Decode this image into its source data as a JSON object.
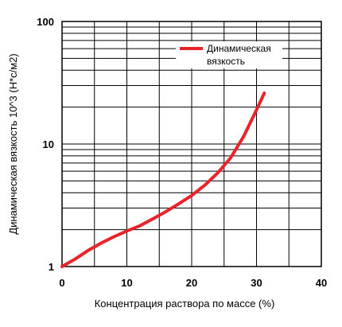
{
  "chart_data": {
    "type": "line",
    "title": "",
    "xlabel": "Концентрация раствора по массе (%)",
    "ylabel": "Динамическая вязкость 10^3 (Н*с/м2)",
    "xlim": [
      0,
      40
    ],
    "ylim": [
      1,
      100
    ],
    "y_scale": "log",
    "grid": true,
    "x_ticks": [
      "0",
      "10",
      "20",
      "30",
      "40"
    ],
    "y_ticks": [
      "1",
      "10",
      "100"
    ],
    "legend": {
      "placement": "top-right",
      "entries": [
        "Динамическая вязкость"
      ]
    },
    "series": [
      {
        "name": "Динамическая вязкость",
        "color": "#e8242b",
        "x": [
          0,
          2,
          4,
          6,
          8,
          10,
          12,
          14,
          16,
          18,
          20,
          22,
          24,
          26,
          28,
          30,
          31.2
        ],
        "y": [
          1.0,
          1.15,
          1.35,
          1.55,
          1.75,
          1.95,
          2.15,
          2.45,
          2.8,
          3.25,
          3.8,
          4.6,
          5.8,
          7.7,
          11.5,
          19.0,
          26.0
        ]
      }
    ]
  }
}
